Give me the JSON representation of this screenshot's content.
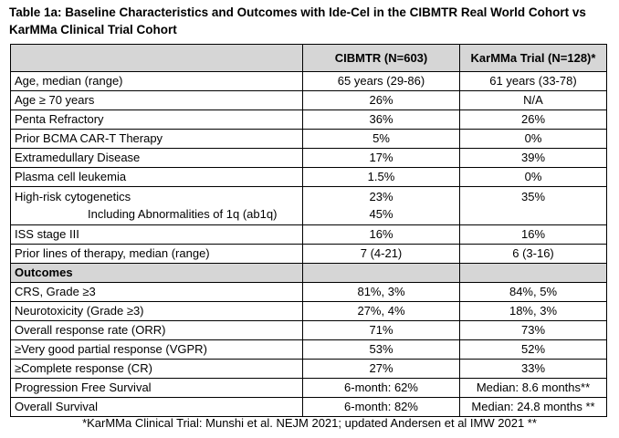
{
  "title": "Table 1a: Baseline Characteristics and Outcomes with Ide-Cel in the CIBMTR Real World Cohort vs KarMMa Clinical Trial Cohort",
  "columns": [
    "",
    "CIBMTR (N=603)",
    "KarMMa Trial (N=128)*"
  ],
  "baseline_rows": [
    {
      "label": "Age, median (range)",
      "cibmtr": "65 years (29-86)",
      "karmma": "61 years (33-78)"
    },
    {
      "label": "Age ≥ 70 years",
      "cibmtr": "26%",
      "karmma": "N/A"
    },
    {
      "label": "Penta Refractory",
      "cibmtr": "36%",
      "karmma": "26%"
    },
    {
      "label": "Prior BCMA CAR-T Therapy",
      "cibmtr": "5%",
      "karmma": "0%"
    },
    {
      "label": "Extramedullary Disease",
      "cibmtr": "17%",
      "karmma": "39%"
    },
    {
      "label": "Plasma cell leukemia",
      "cibmtr": "1.5%",
      "karmma": "0%"
    }
  ],
  "cytogenetics_row": {
    "label": "High-risk cytogenetics",
    "sublabel": "Including Abnormalities of 1q (ab1q)",
    "cibmtr": "23%",
    "cibmtr_sub": "45%",
    "karmma": "35%"
  },
  "baseline_rows_2": [
    {
      "label": "ISS stage III",
      "cibmtr": "16%",
      "karmma": "16%"
    },
    {
      "label": "Prior lines of therapy, median (range)",
      "cibmtr": "7 (4-21)",
      "karmma": "6 (3-16)"
    }
  ],
  "outcomes_header": "Outcomes",
  "outcome_rows": [
    {
      "label": "CRS, Grade ≥3",
      "cibmtr": "81%, 3%",
      "karmma": "84%, 5%"
    },
    {
      "label": "Neurotoxicity (Grade ≥3)",
      "cibmtr": "27%, 4%",
      "karmma": "18%, 3%"
    },
    {
      "label": "Overall response rate (ORR)",
      "cibmtr": "71%",
      "karmma": "73%"
    },
    {
      "label": "≥Very good partial response (VGPR)",
      "cibmtr": "53%",
      "karmma": "52%"
    },
    {
      "label": "≥Complete response (CR)",
      "cibmtr": "27%",
      "karmma": "33%"
    },
    {
      "label": "Progression Free Survival",
      "cibmtr": "6-month: 62%",
      "karmma": "Median: 8.6 months**"
    },
    {
      "label": " Overall Survival",
      "cibmtr": "6-month: 82%",
      "karmma": "Median: 24.8 months **"
    }
  ],
  "footnote": "*KarMMa Clinical Trial: Munshi et al. NEJM 2021; updated Andersen et al IMW 2021 **"
}
